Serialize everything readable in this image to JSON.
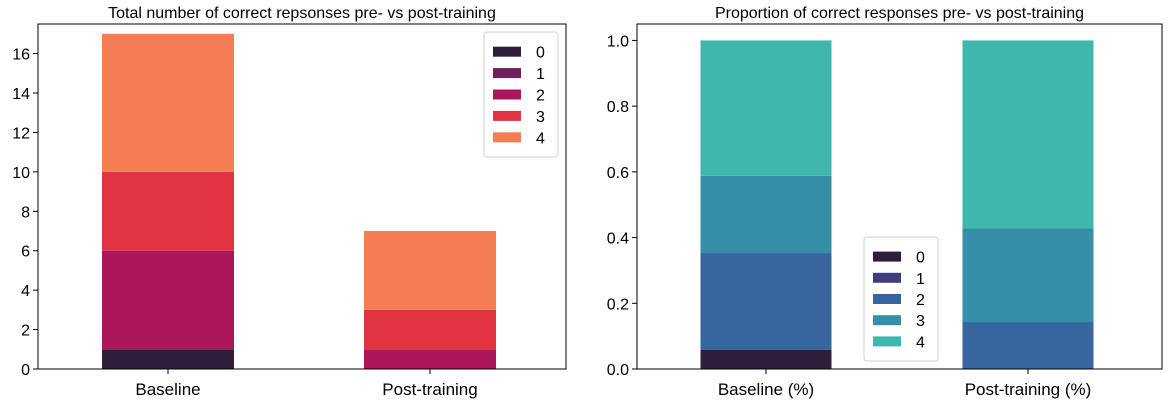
{
  "chart_data": [
    {
      "type": "bar",
      "stacked": true,
      "title": "Total number of correct repsonses pre- vs post-training",
      "xlabel": "",
      "ylabel": "",
      "categories": [
        "Baseline",
        "Post-training"
      ],
      "ylim": [
        0,
        17.5
      ],
      "yticks": [
        0,
        2,
        4,
        6,
        8,
        10,
        12,
        14,
        16
      ],
      "grid": false,
      "legend": "top-right",
      "series": [
        {
          "name": "0",
          "color": "#2e1e3b",
          "values": [
            1,
            0
          ]
        },
        {
          "name": "1",
          "color": "#721f57",
          "values": [
            0,
            0
          ]
        },
        {
          "name": "2",
          "color": "#ad1759",
          "values": [
            5,
            1
          ]
        },
        {
          "name": "3",
          "color": "#e13342",
          "values": [
            4,
            2
          ]
        },
        {
          "name": "4",
          "color": "#f57d53",
          "values": [
            7,
            4
          ]
        }
      ]
    },
    {
      "type": "bar",
      "stacked": true,
      "title": "Proportion of correct responses pre- vs post-training",
      "xlabel": "",
      "ylabel": "",
      "categories": [
        "Baseline (%)",
        "Post-training (%)"
      ],
      "ylim": [
        0,
        1.05
      ],
      "yticks": [
        0.0,
        0.2,
        0.4,
        0.6,
        0.8,
        1.0
      ],
      "ytick_labels": [
        "0.0",
        "0.2",
        "0.4",
        "0.6",
        "0.8",
        "1.0"
      ],
      "grid": false,
      "legend": "lower-center",
      "series": [
        {
          "name": "0",
          "color": "#2e1e3b",
          "values": [
            0.0588,
            0.0
          ]
        },
        {
          "name": "1",
          "color": "#413d7b",
          "values": [
            0.0,
            0.0
          ]
        },
        {
          "name": "2",
          "color": "#37659e",
          "values": [
            0.2941,
            0.1429
          ]
        },
        {
          "name": "3",
          "color": "#348fa7",
          "values": [
            0.2353,
            0.2857
          ]
        },
        {
          "name": "4",
          "color": "#40b7ad",
          "values": [
            0.4118,
            0.5714
          ]
        }
      ]
    }
  ]
}
